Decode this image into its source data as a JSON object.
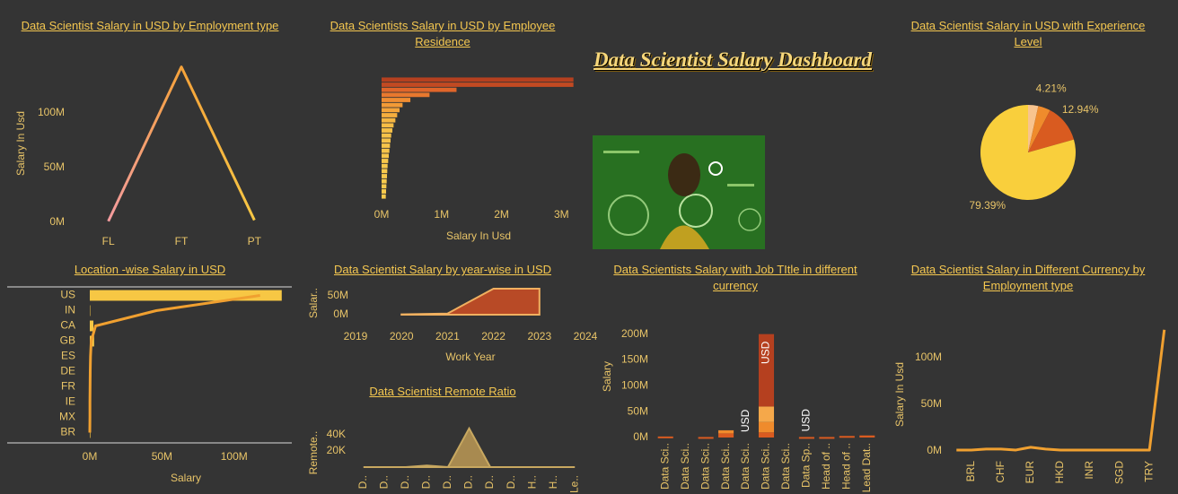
{
  "title": "Data Scientist Salary Dashboard",
  "chart_data": [
    {
      "type": "line",
      "title": "Data Scientist Salary in USD by Employment type",
      "y_label": "Salary In Usd",
      "categories": [
        "FL",
        "FT",
        "PT"
      ],
      "values": [
        1000000,
        142000000,
        2000000
      ],
      "colors": [
        "#f49ca0",
        "#f5a23a",
        "#f7c744"
      ],
      "ylim": [
        0,
        145000000
      ],
      "yticks": [
        {
          "value": 0,
          "label": "0M"
        },
        {
          "value": 50000000,
          "label": "50M"
        },
        {
          "value": 100000000,
          "label": "100M"
        }
      ]
    },
    {
      "type": "bar",
      "orientation": "horizontal",
      "title": "Data Scientists Salary in USD by Employee Residence",
      "x_label": "Salary In Usd",
      "categories": [
        null,
        null,
        null,
        null,
        null,
        null,
        null,
        null,
        null,
        null,
        null,
        null,
        null,
        null,
        null,
        null,
        null,
        null,
        null,
        null,
        null,
        null,
        null,
        null
      ],
      "values": [
        3200000,
        3200000,
        1250000,
        800000,
        480000,
        350000,
        300000,
        260000,
        230000,
        200000,
        180000,
        160000,
        150000,
        140000,
        130000,
        120000,
        110000,
        100000,
        95000,
        90000,
        85000,
        80000,
        75000,
        70000
      ],
      "colors": [
        "#b5401f",
        "#c24a22",
        "#e0662a",
        "#e8782e",
        "#f08c32",
        "#f39a36",
        "#f5a43a",
        "#f6ae3e",
        "#f6b642",
        "#f7bc45",
        "#f7c047",
        "#f7c249",
        "#f7c24a",
        "#f7c44a",
        "#f7c44a",
        "#f7c64b",
        "#f7c64b",
        "#f7c84c",
        "#f7c84c",
        "#f7c84c",
        "#f7ca4d",
        "#f7ca4d",
        "#f7ca4d",
        "#f7ca4d"
      ],
      "xlim": [
        0,
        3250000
      ],
      "xticks": [
        {
          "value": 0,
          "label": "0M"
        },
        {
          "value": 1000000,
          "label": "1M"
        },
        {
          "value": 2000000,
          "label": "2M"
        },
        {
          "value": 3000000,
          "label": "3M"
        }
      ]
    },
    {
      "type": "pie",
      "title": "Data Scientist Salary in USD with Experience Level",
      "categories": [
        null,
        null,
        null,
        null
      ],
      "values": [
        3.46,
        4.21,
        12.94,
        79.39
      ],
      "value_labels": [
        null,
        "4.21%",
        "12.94%",
        "79.39%"
      ],
      "colors": [
        "#f8c48e",
        "#ef8b2c",
        "#d95b20",
        "#f9cf3c"
      ]
    },
    {
      "type": "bar",
      "orientation": "horizontal",
      "title": "Location -wise Salary in USD ",
      "x_label": "Salary",
      "categories": [
        "US",
        "IN",
        "CA",
        "GB",
        "ES",
        "DE",
        "FR",
        "IE",
        "MX",
        "BR"
      ],
      "values": [
        133000000,
        300000,
        2500000,
        3000000,
        1200000,
        1000000,
        800000,
        600000,
        500000,
        400000
      ],
      "line_values": [
        118000000,
        46000000,
        4000000,
        1000000,
        500000,
        300000,
        200000,
        100000,
        100000,
        0
      ],
      "color": "#f7c744",
      "line_color": "#f0a030",
      "xlim": [
        0,
        135000000
      ],
      "xticks": [
        {
          "value": 0,
          "label": "0M"
        },
        {
          "value": 50000000,
          "label": "50M"
        },
        {
          "value": 100000000,
          "label": "100M"
        }
      ]
    },
    {
      "type": "area",
      "title": "Data Scientist Salary by year-wise in USD",
      "x_label": "Work Year",
      "y_label": "Salar..",
      "x": [
        2020,
        2021,
        2022,
        2023
      ],
      "values": [
        1000000,
        3000000,
        69000000,
        69000000
      ],
      "color": "#b84a26",
      "edge_color": "#f0b060",
      "xlim": [
        2019,
        2024
      ],
      "xticks": [
        2019,
        2020,
        2021,
        2022,
        2023,
        2024
      ],
      "ylim": [
        0,
        70000000
      ],
      "yticks": [
        {
          "value": 0,
          "label": "0M"
        },
        {
          "value": 50000000,
          "label": "50M"
        }
      ]
    },
    {
      "type": "area",
      "title": "Data Scientist Remote Ratio",
      "y_label": "Remote..",
      "categories": [
        "D..",
        "D..",
        "D..",
        "D..",
        "D..",
        "D..",
        "D..",
        "D..",
        "H..",
        "H..",
        "Le.."
      ],
      "values": [
        0,
        0,
        0,
        2000,
        0,
        48000,
        0,
        0,
        0,
        0,
        0
      ],
      "color": "#a88a50",
      "edge_color": "#c8a860",
      "ylim": [
        0,
        50000
      ],
      "yticks": [
        {
          "value": 20000,
          "label": "20K"
        },
        {
          "value": 40000,
          "label": "40K"
        }
      ]
    },
    {
      "type": "bar",
      "title": "Data Scientists Salary with Job TItle in different currency",
      "y_label": "Salary",
      "categories": [
        "Data Sci..",
        "Data Sci..",
        "Data Sci..",
        "Data Sci..",
        "Data Sci..",
        "Data Sci..",
        "Data Sci..",
        "Data Sp..",
        "Head of ..",
        "Head of ..",
        "Lead Dat.."
      ],
      "series": [
        {
          "color": "#d95b20",
          "values": [
            2000000,
            0,
            1000000,
            8000000,
            0,
            10000000,
            0,
            1000000,
            1000000,
            3000000,
            4000000
          ]
        },
        {
          "color": "#ef8b2c",
          "values": [
            0,
            0,
            0,
            6000000,
            0,
            20000000,
            0,
            0,
            0,
            0,
            0
          ]
        },
        {
          "color": "#f5a84a",
          "values": [
            0,
            0,
            0,
            0,
            0,
            30000000,
            0,
            0,
            0,
            0,
            0
          ]
        },
        {
          "color": "#b5401f",
          "values": [
            0,
            0,
            0,
            0,
            0,
            140000000,
            0,
            0,
            0,
            0,
            0
          ]
        }
      ],
      "annotations": [
        {
          "text": "USD",
          "category": 4
        },
        {
          "text": "USD",
          "category": 5
        },
        {
          "text": "USD",
          "category": 7
        }
      ],
      "ylim": [
        0,
        215000000
      ],
      "yticks": [
        {
          "value": 0,
          "label": "0M"
        },
        {
          "value": 50000000,
          "label": "50M"
        },
        {
          "value": 100000000,
          "label": "100M"
        },
        {
          "value": 150000000,
          "label": "150M"
        },
        {
          "value": 200000000,
          "label": "200M"
        }
      ]
    },
    {
      "type": "line",
      "title": "Data Scientist Salary in Different Currency by Employment type",
      "y_label": "Salary In Usd",
      "categories": [
        null,
        "BRL",
        null,
        "CHF",
        null,
        "EUR",
        null,
        "HKD",
        null,
        "INR",
        null,
        "SGD",
        null,
        "TRY",
        null
      ],
      "values": [
        1000000,
        1000000,
        2000000,
        2000000,
        1000000,
        4000000,
        2000000,
        1000000,
        1000000,
        1000000,
        1000000,
        1000000,
        1000000,
        1000000,
        130000000
      ],
      "color": "#f0a030",
      "ylim": [
        0,
        135000000
      ],
      "yticks": [
        {
          "value": 0,
          "label": "0M"
        },
        {
          "value": 50000000,
          "label": "50M"
        },
        {
          "value": 100000000,
          "label": "100M"
        }
      ]
    }
  ]
}
